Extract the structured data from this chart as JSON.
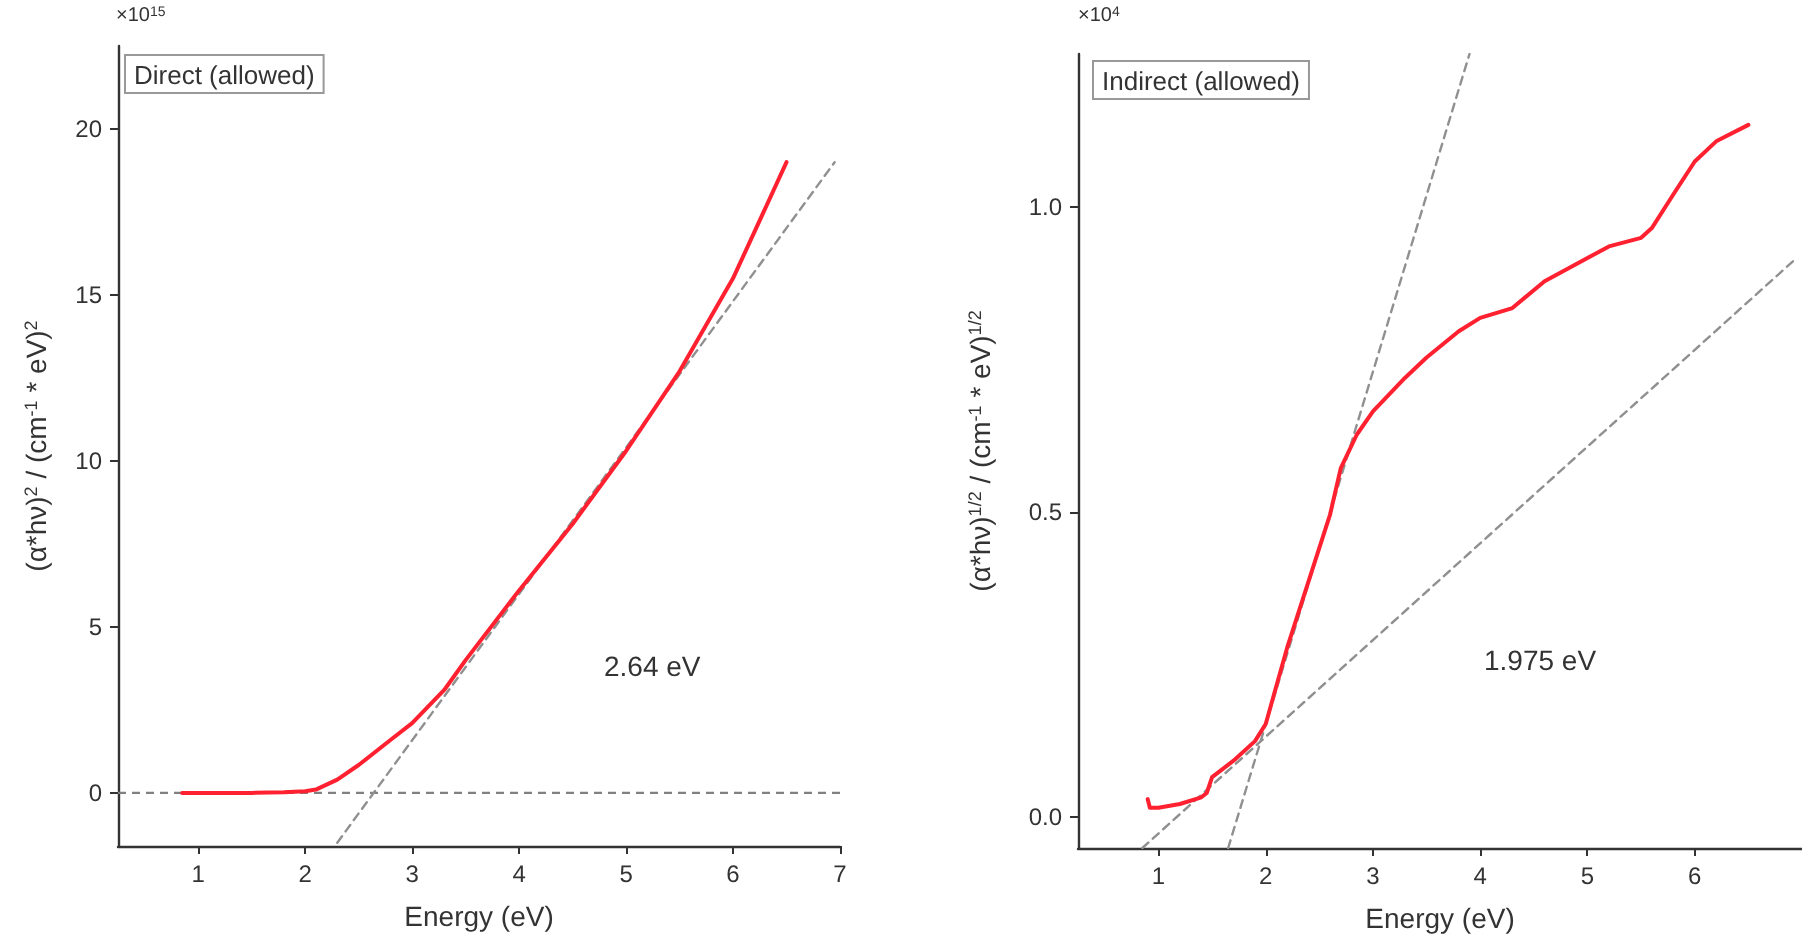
{
  "chart_data": [
    {
      "type": "line",
      "xlabel": "Energy (eV)",
      "ylabel": "(α*hν)$^{2}$ / (cm$^{-1}$ * eV)$^{2}$",
      "annotations": [
        "×10$^{15}$",
        "Direct (allowed)",
        "2.64 eV"
      ],
      "xlim": [
        0.25,
        7
      ],
      "ylim": [
        -1.6,
        22.5
      ],
      "xticks": [
        1,
        2,
        3,
        4,
        5,
        6,
        7
      ],
      "yticks": [
        0,
        5,
        10,
        15,
        20
      ],
      "grid": false,
      "marker": "none",
      "ref_lines": [
        {
          "axis": "y",
          "value": 0,
          "color": "#808080",
          "line_style": "dashed"
        }
      ],
      "series": [
        {
          "color": "#ff2030",
          "line_style": "solid",
          "x": [
            0.85,
            1.2,
            1.5,
            1.8,
            2.0,
            2.1,
            2.3,
            2.5,
            2.8,
            3.0,
            3.3,
            3.5,
            4.0,
            4.5,
            5.0,
            5.5,
            6.0,
            6.5
          ],
          "values": [
            0,
            0,
            0,
            0.02,
            0.05,
            0.1,
            0.4,
            0.84,
            1.6,
            2.1,
            3.1,
            4.0,
            6.1,
            8.1,
            10.3,
            12.7,
            15.5,
            19.0
          ]
        },
        {
          "color": "#909090",
          "line_style": "dashed",
          "x": [
            2.3,
            6.95
          ],
          "values": [
            -1.5,
            19.0
          ]
        }
      ]
    },
    {
      "type": "line",
      "xlabel": "Energy (eV)",
      "ylabel": "(α*hν)$^{1/2}$ / (cm$^{-1}$ * eV)$^{1/2}$",
      "annotations": [
        "×10$^{4}$",
        "Indirect (allowed)",
        "1.975 eV"
      ],
      "xlim": [
        0.25,
        7
      ],
      "ylim": [
        -0.05,
        1.25
      ],
      "xticks": [
        1,
        2,
        3,
        4,
        5,
        6
      ],
      "yticks": [
        {
          "value": 0,
          "label": "0.0"
        },
        {
          "value": 0.5,
          "label": "0.5"
        },
        {
          "value": 1,
          "label": "1.0"
        }
      ],
      "grid": false,
      "marker": "none",
      "series": [
        {
          "color": "#ff2030",
          "line_style": "solid",
          "x": [
            0.9,
            0.92,
            1.0,
            1.2,
            1.4,
            1.45,
            1.5,
            1.7,
            1.9,
            2.0,
            2.2,
            2.4,
            2.6,
            2.7,
            2.85,
            3.0,
            3.3,
            3.5,
            3.8,
            4.0,
            4.3,
            4.6,
            5.0,
            5.2,
            5.5,
            5.6,
            5.8,
            6.0,
            6.2,
            6.5
          ],
          "values": [
            0.03,
            0.016,
            0.016,
            0.022,
            0.033,
            0.04,
            0.066,
            0.093,
            0.125,
            0.153,
            0.278,
            0.387,
            0.496,
            0.572,
            0.627,
            0.665,
            0.72,
            0.753,
            0.796,
            0.818,
            0.834,
            0.878,
            0.916,
            0.935,
            0.949,
            0.965,
            1.02,
            1.074,
            1.107,
            1.134
          ]
        },
        {
          "color": "#909090",
          "line_style": "dashed",
          "x": [
            1.65,
            3.9
          ],
          "values": [
            -0.05,
            1.25
          ]
        },
        {
          "color": "#909090",
          "line_style": "dashed",
          "x": [
            0.85,
            6.95
          ],
          "values": [
            -0.05,
            0.916
          ]
        }
      ]
    }
  ]
}
